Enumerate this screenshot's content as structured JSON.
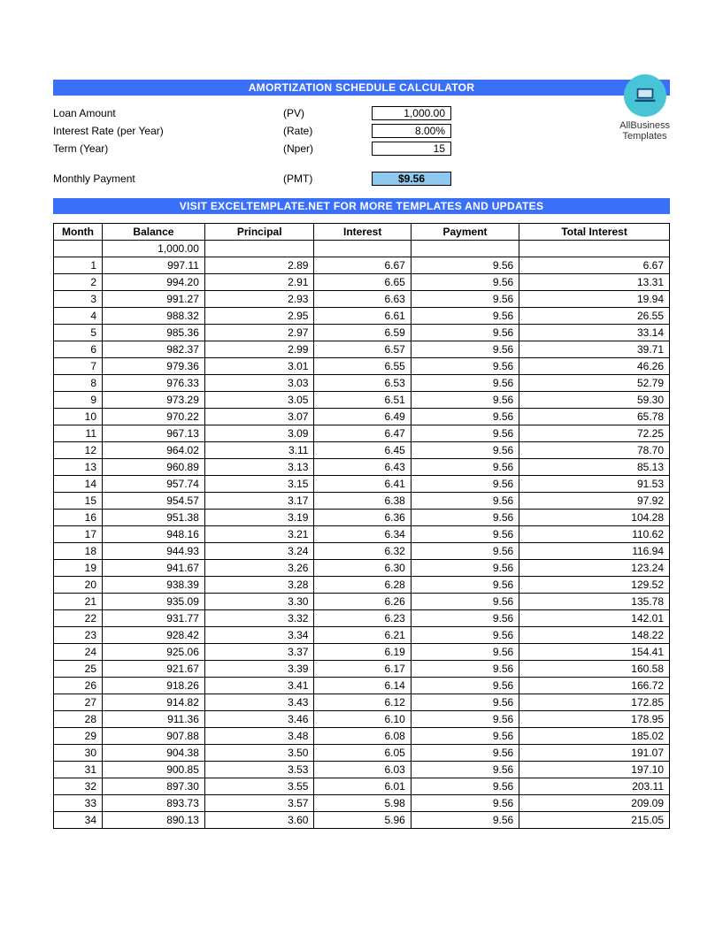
{
  "title_banner": "AMORTIZATION SCHEDULE CALCULATOR",
  "visit_banner": "VISIT EXCELTEMPLATE.NET FOR MORE TEMPLATES AND UPDATES",
  "brand": {
    "line1": "AllBusiness",
    "line2": "Templates",
    "logo_bg": "#47c4d6"
  },
  "colors": {
    "banner_bg": "#3a6ff7",
    "banner_fg": "#ffffff",
    "pmt_bg": "#8ec9f0",
    "border": "#000000"
  },
  "inputs": {
    "loan": {
      "label": "Loan Amount",
      "abbr": "(PV)",
      "value": "1,000.00"
    },
    "rate": {
      "label": "Interest Rate (per Year)",
      "abbr": "(Rate)",
      "value": "8.00%"
    },
    "term": {
      "label": "Term (Year)",
      "abbr": "(Nper)",
      "value": "15"
    },
    "pmt": {
      "label": "Monthly Payment",
      "abbr": "(PMT)",
      "value": "$9.56"
    }
  },
  "table": {
    "columns": [
      "Month",
      "Balance",
      "Principal",
      "Interest",
      "Payment",
      "Total Interest"
    ],
    "initial_balance": "1,000.00",
    "rows": [
      [
        "1",
        "997.11",
        "2.89",
        "6.67",
        "9.56",
        "6.67"
      ],
      [
        "2",
        "994.20",
        "2.91",
        "6.65",
        "9.56",
        "13.31"
      ],
      [
        "3",
        "991.27",
        "2.93",
        "6.63",
        "9.56",
        "19.94"
      ],
      [
        "4",
        "988.32",
        "2.95",
        "6.61",
        "9.56",
        "26.55"
      ],
      [
        "5",
        "985.36",
        "2.97",
        "6.59",
        "9.56",
        "33.14"
      ],
      [
        "6",
        "982.37",
        "2.99",
        "6.57",
        "9.56",
        "39.71"
      ],
      [
        "7",
        "979.36",
        "3.01",
        "6.55",
        "9.56",
        "46.26"
      ],
      [
        "8",
        "976.33",
        "3.03",
        "6.53",
        "9.56",
        "52.79"
      ],
      [
        "9",
        "973.29",
        "3.05",
        "6.51",
        "9.56",
        "59.30"
      ],
      [
        "10",
        "970.22",
        "3.07",
        "6.49",
        "9.56",
        "65.78"
      ],
      [
        "11",
        "967.13",
        "3.09",
        "6.47",
        "9.56",
        "72.25"
      ],
      [
        "12",
        "964.02",
        "3.11",
        "6.45",
        "9.56",
        "78.70"
      ],
      [
        "13",
        "960.89",
        "3.13",
        "6.43",
        "9.56",
        "85.13"
      ],
      [
        "14",
        "957.74",
        "3.15",
        "6.41",
        "9.56",
        "91.53"
      ],
      [
        "15",
        "954.57",
        "3.17",
        "6.38",
        "9.56",
        "97.92"
      ],
      [
        "16",
        "951.38",
        "3.19",
        "6.36",
        "9.56",
        "104.28"
      ],
      [
        "17",
        "948.16",
        "3.21",
        "6.34",
        "9.56",
        "110.62"
      ],
      [
        "18",
        "944.93",
        "3.24",
        "6.32",
        "9.56",
        "116.94"
      ],
      [
        "19",
        "941.67",
        "3.26",
        "6.30",
        "9.56",
        "123.24"
      ],
      [
        "20",
        "938.39",
        "3.28",
        "6.28",
        "9.56",
        "129.52"
      ],
      [
        "21",
        "935.09",
        "3.30",
        "6.26",
        "9.56",
        "135.78"
      ],
      [
        "22",
        "931.77",
        "3.32",
        "6.23",
        "9.56",
        "142.01"
      ],
      [
        "23",
        "928.42",
        "3.34",
        "6.21",
        "9.56",
        "148.22"
      ],
      [
        "24",
        "925.06",
        "3.37",
        "6.19",
        "9.56",
        "154.41"
      ],
      [
        "25",
        "921.67",
        "3.39",
        "6.17",
        "9.56",
        "160.58"
      ],
      [
        "26",
        "918.26",
        "3.41",
        "6.14",
        "9.56",
        "166.72"
      ],
      [
        "27",
        "914.82",
        "3.43",
        "6.12",
        "9.56",
        "172.85"
      ],
      [
        "28",
        "911.36",
        "3.46",
        "6.10",
        "9.56",
        "178.95"
      ],
      [
        "29",
        "907.88",
        "3.48",
        "6.08",
        "9.56",
        "185.02"
      ],
      [
        "30",
        "904.38",
        "3.50",
        "6.05",
        "9.56",
        "191.07"
      ],
      [
        "31",
        "900.85",
        "3.53",
        "6.03",
        "9.56",
        "197.10"
      ],
      [
        "32",
        "897.30",
        "3.55",
        "6.01",
        "9.56",
        "203.11"
      ],
      [
        "33",
        "893.73",
        "3.57",
        "5.98",
        "9.56",
        "209.09"
      ],
      [
        "34",
        "890.13",
        "3.60",
        "5.96",
        "9.56",
        "215.05"
      ]
    ]
  }
}
